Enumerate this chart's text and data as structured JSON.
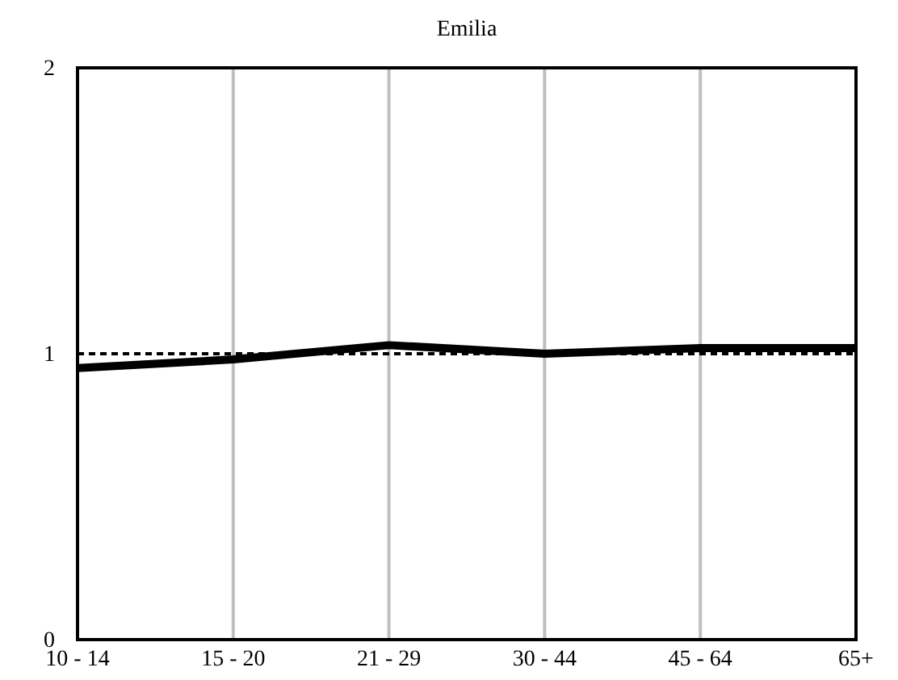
{
  "chart_data": {
    "type": "line",
    "title": "Emilia",
    "categories": [
      "10 - 14",
      "15 - 20",
      "21 - 29",
      "30 - 44",
      "45 - 64",
      "65+"
    ],
    "series": [
      {
        "color": "#000000",
        "values": [
          0.95,
          0.98,
          1.03,
          1.0,
          1.02,
          1.02
        ]
      }
    ],
    "ylim": [
      0,
      2
    ],
    "yticks": [
      0,
      1,
      2
    ],
    "grid": "x",
    "marker": "none",
    "line_style": "solid",
    "ref_lines": [
      {
        "axis": "y",
        "value": 1,
        "color": "#000000",
        "line_style": "dashed"
      }
    ]
  }
}
